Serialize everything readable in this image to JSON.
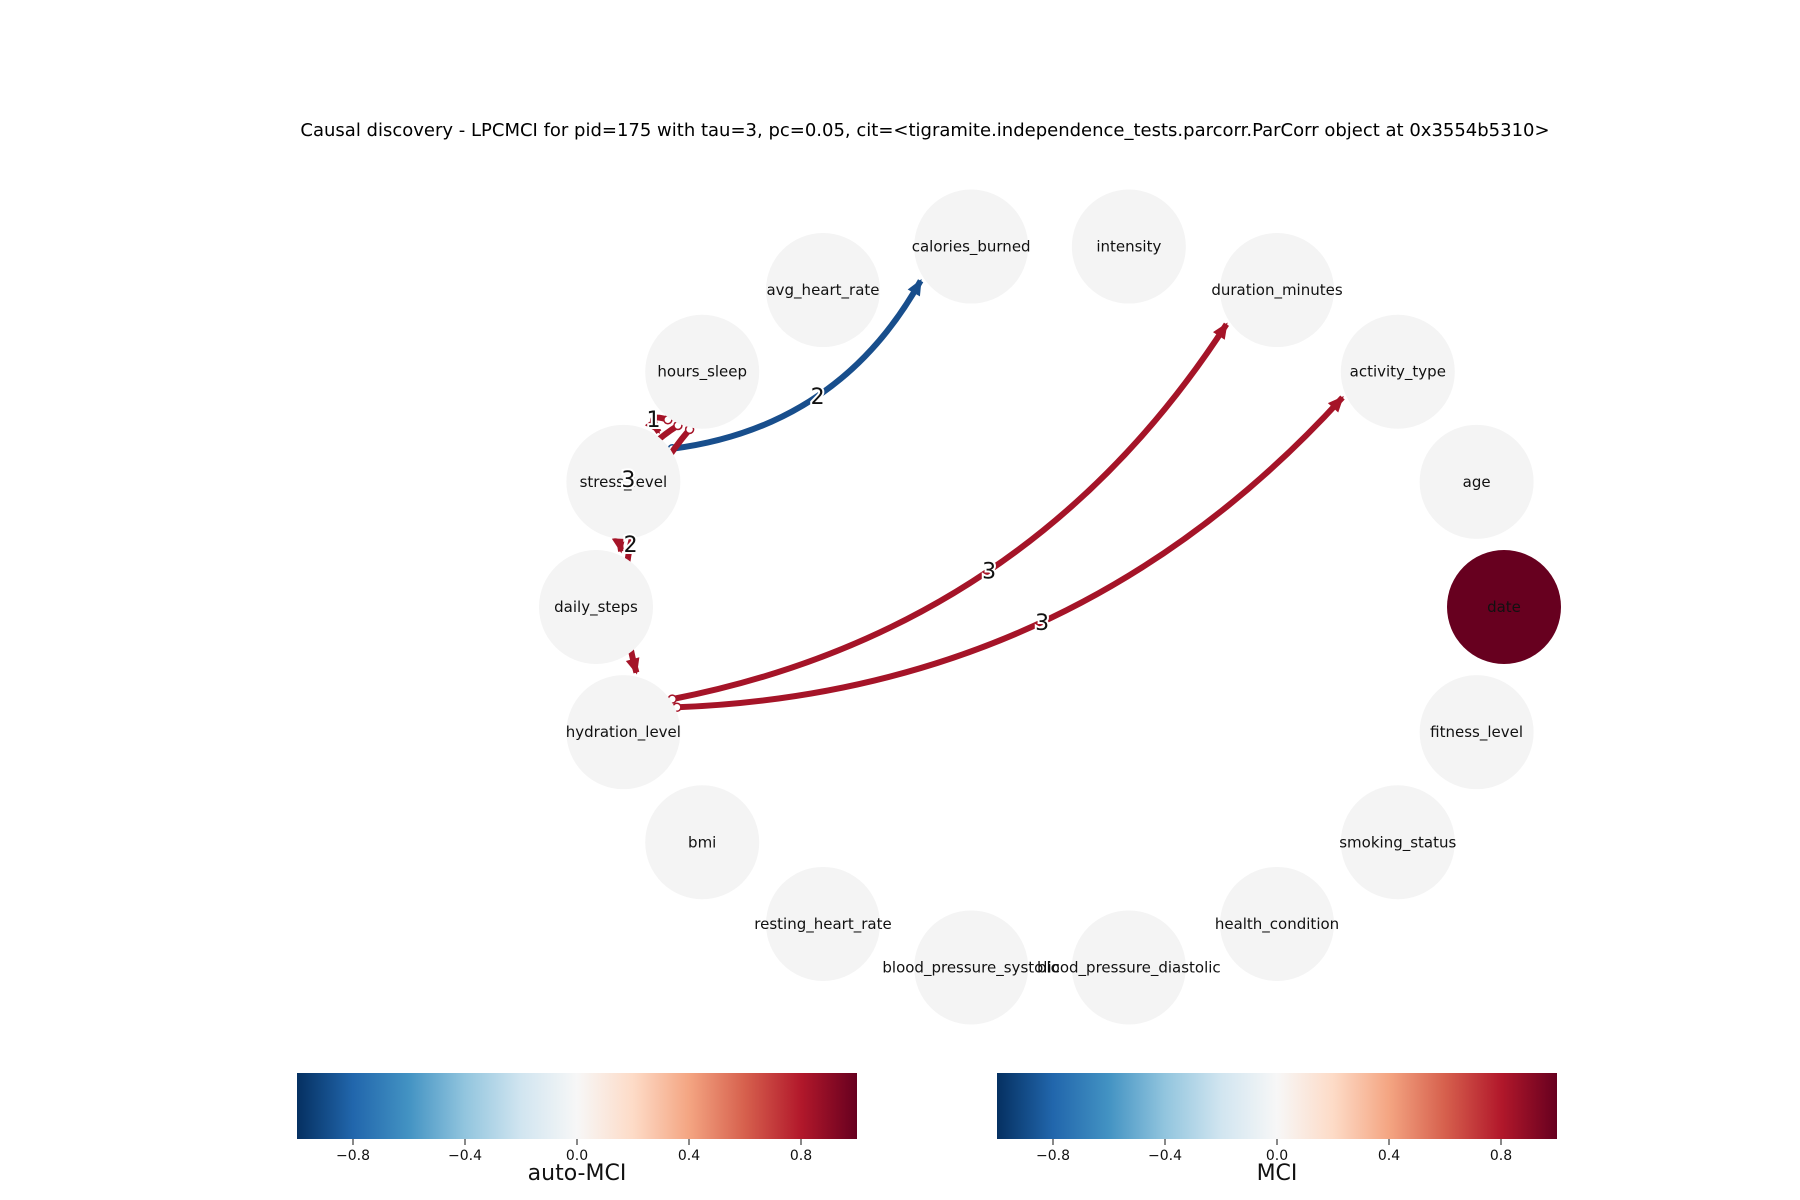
{
  "title": "Causal discovery - LPCMCI for pid=175 with tau=3, pc=0.05, cit=<tigramite.independence_tests.parcorr.ParCorr object at 0x3554b5310>",
  "colors": {
    "node_default": "#f4f4f4",
    "positive_strong": "#a51428",
    "negative": "#184e8c",
    "date_node": "#67001f"
  },
  "nodes": [
    {
      "id": "calories_burned",
      "label": "calories_burned",
      "mci": 0
    },
    {
      "id": "intensity",
      "label": "intensity",
      "mci": 0
    },
    {
      "id": "duration_minutes",
      "label": "duration_minutes",
      "mci": 0
    },
    {
      "id": "activity_type",
      "label": "activity_type",
      "mci": 0
    },
    {
      "id": "age",
      "label": "age",
      "mci": 0
    },
    {
      "id": "date",
      "label": "date",
      "mci": 1.0
    },
    {
      "id": "fitness_level",
      "label": "fitness_level",
      "mci": 0
    },
    {
      "id": "smoking_status",
      "label": "smoking_status",
      "mci": 0
    },
    {
      "id": "health_condition",
      "label": "health_condition",
      "mci": 0
    },
    {
      "id": "blood_pressure_diastolic",
      "label": "blood_pressure_diastolic",
      "mci": 0
    },
    {
      "id": "blood_pressure_systolic",
      "label": "blood_pressure_systolic",
      "mci": 0
    },
    {
      "id": "resting_heart_rate",
      "label": "resting_heart_rate",
      "mci": 0
    },
    {
      "id": "bmi",
      "label": "bmi",
      "mci": 0
    },
    {
      "id": "hydration_level",
      "label": "hydration_level",
      "mci": 0
    },
    {
      "id": "daily_steps",
      "label": "daily_steps",
      "mci": 0
    },
    {
      "id": "stress_level",
      "label": "stress_level",
      "mci": 0
    },
    {
      "id": "hours_sleep",
      "label": "hours_sleep",
      "mci": 0
    },
    {
      "id": "avg_heart_rate",
      "label": "avg_heart_rate",
      "mci": 0
    }
  ],
  "edges": [
    {
      "from": "stress_level",
      "to": "calories_burned",
      "lag": "2",
      "mci": -0.75,
      "tail": "circle"
    },
    {
      "from": "hours_sleep",
      "to": "stress_level",
      "lag": "1",
      "mci": 0.85,
      "tail": "circle"
    },
    {
      "from": "hours_sleep",
      "to": "daily_steps",
      "lag": "3",
      "mci": 0.85,
      "tail": "circle"
    },
    {
      "from": "hours_sleep",
      "to": "hydration_level",
      "lag": "2",
      "mci": 0.85,
      "tail": "circle"
    },
    {
      "from": "hydration_level",
      "to": "duration_minutes",
      "lag": "3",
      "mci": 0.85,
      "tail": "circle"
    },
    {
      "from": "hydration_level",
      "to": "activity_type",
      "lag": "3",
      "mci": 0.85,
      "tail": "circle"
    }
  ],
  "colorbars": [
    {
      "label": "auto-MCI",
      "ticks": [
        "−0.8",
        "−0.4",
        "0.0",
        "0.4",
        "0.8"
      ],
      "tick_values": [
        -0.8,
        -0.4,
        0.0,
        0.4,
        0.8
      ],
      "range": [
        -1,
        1
      ]
    },
    {
      "label": "MCI",
      "ticks": [
        "−0.8",
        "−0.4",
        "0.0",
        "0.4",
        "0.8"
      ],
      "tick_values": [
        -0.8,
        -0.4,
        0.0,
        0.4,
        0.8
      ],
      "range": [
        -1,
        1
      ]
    }
  ]
}
